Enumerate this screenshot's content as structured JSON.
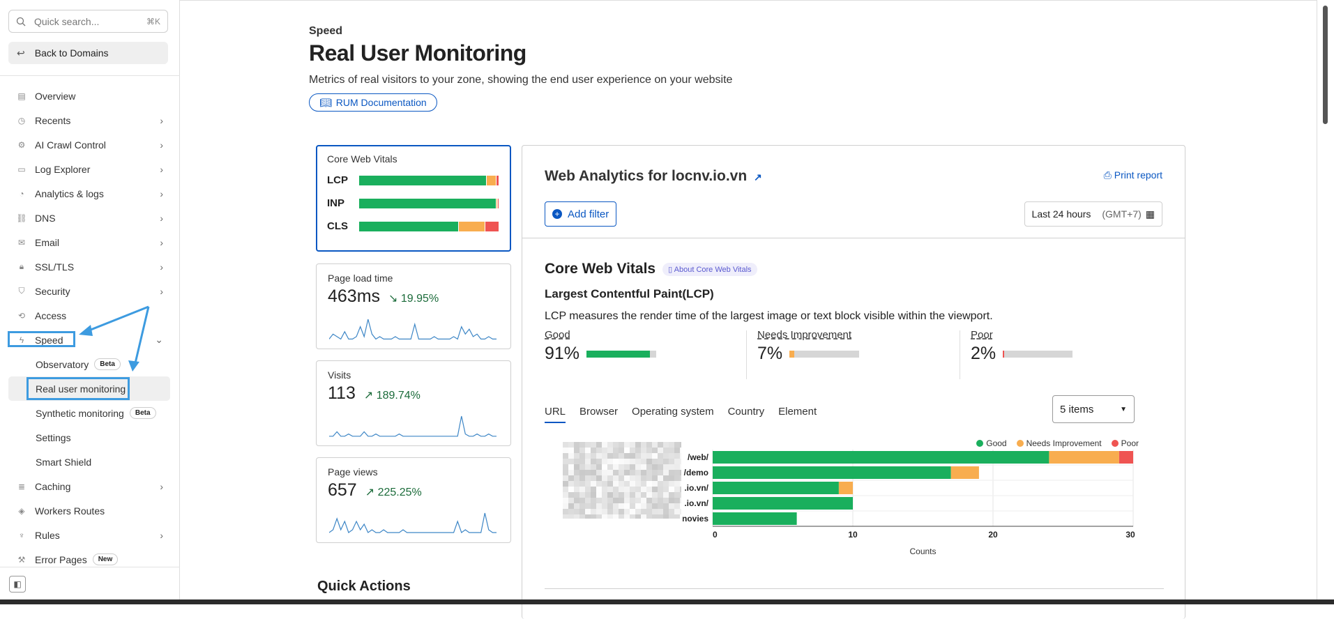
{
  "sidebar": {
    "search_placeholder": "Quick search...",
    "search_shortcut": "⌘K",
    "back_label": "Back to Domains",
    "items": [
      {
        "label": "Overview",
        "icon": "document-icon",
        "chevron": false
      },
      {
        "label": "Recents",
        "icon": "clock-icon",
        "chevron": true
      },
      {
        "label": "AI Crawl Control",
        "icon": "robot-icon",
        "chevron": true
      },
      {
        "label": "Log Explorer",
        "icon": "log-icon",
        "chevron": true
      },
      {
        "label": "Analytics & logs",
        "icon": "pie-icon",
        "chevron": true
      },
      {
        "label": "DNS",
        "icon": "network-icon",
        "chevron": true
      },
      {
        "label": "Email",
        "icon": "mail-icon",
        "chevron": true
      },
      {
        "label": "SSL/TLS",
        "icon": "lock-icon",
        "chevron": true
      },
      {
        "label": "Security",
        "icon": "shield-icon",
        "chevron": true
      },
      {
        "label": "Access",
        "icon": "access-icon",
        "chevron": false
      },
      {
        "label": "Speed",
        "icon": "bolt-icon",
        "chevron": true
      }
    ],
    "speed_sub": [
      {
        "label": "Observatory",
        "badge": "Beta"
      },
      {
        "label": "Real user monitoring",
        "badge": ""
      },
      {
        "label": "Synthetic monitoring",
        "badge": "Beta"
      },
      {
        "label": "Settings",
        "badge": ""
      },
      {
        "label": "Smart Shield",
        "badge": ""
      }
    ],
    "items_after": [
      {
        "label": "Caching",
        "icon": "stack-icon",
        "chevron": true
      },
      {
        "label": "Workers Routes",
        "icon": "workers-icon",
        "chevron": false
      },
      {
        "label": "Rules",
        "icon": "rules-icon",
        "chevron": true
      },
      {
        "label": "Error Pages",
        "icon": "wrench-icon",
        "chevron": false,
        "badge": "New"
      }
    ]
  },
  "header": {
    "eyebrow": "Speed",
    "title": "Real User Monitoring",
    "description": "Metrics of real visitors to your zone, showing the end user experience on your website",
    "doc_button": "RUM Documentation"
  },
  "cwv_card": {
    "title": "Core Web Vitals",
    "rows": [
      {
        "label": "LCP",
        "good": 91,
        "ni": 7,
        "poor": 2
      },
      {
        "label": "INP",
        "good": 98,
        "ni": 1,
        "poor": 1
      },
      {
        "label": "CLS",
        "good": 71,
        "ni": 19,
        "poor": 10
      }
    ]
  },
  "metrics": [
    {
      "title": "Page load time",
      "value": "463ms",
      "change": "19.95%",
      "direction": "down",
      "spark": [
        1,
        3,
        2,
        1,
        4,
        1,
        1,
        2,
        6,
        2,
        9,
        3,
        1,
        2,
        1,
        1,
        1,
        2,
        1,
        1,
        1,
        1,
        7,
        1,
        1,
        1,
        1,
        2,
        1,
        1,
        1,
        1,
        2,
        1,
        6,
        3,
        5,
        2,
        3,
        1,
        1,
        2,
        1,
        1
      ]
    },
    {
      "title": "Visits",
      "value": "113",
      "change": "189.74%",
      "direction": "up",
      "spark": [
        1,
        1,
        3,
        1,
        1,
        2,
        1,
        1,
        1,
        3,
        1,
        1,
        2,
        1,
        1,
        1,
        1,
        1,
        2,
        1,
        1,
        1,
        1,
        1,
        1,
        1,
        1,
        1,
        1,
        1,
        1,
        1,
        1,
        1,
        10,
        2,
        1,
        1,
        2,
        1,
        1,
        2,
        1,
        1
      ]
    },
    {
      "title": "Page views",
      "value": "657",
      "change": "225.25%",
      "direction": "up",
      "spark": [
        1,
        2,
        6,
        2,
        5,
        1,
        2,
        5,
        2,
        4,
        1,
        2,
        1,
        1,
        2,
        1,
        1,
        1,
        1,
        2,
        1,
        1,
        1,
        1,
        1,
        1,
        1,
        1,
        1,
        1,
        1,
        1,
        1,
        5,
        1,
        2,
        1,
        1,
        1,
        1,
        8,
        2,
        1,
        1
      ]
    }
  ],
  "quick_actions": "Quick Actions",
  "panel": {
    "title": "Web Analytics for locnv.io.vn",
    "print_label": "Print report",
    "add_filter": "Add filter",
    "date_range": "Last 24 hours",
    "timezone": "(GMT+7)",
    "section_title": "Core Web Vitals",
    "about_label": "About Core Web Vitals",
    "lcp_title": "Largest Contentful Paint(LCP)",
    "lcp_desc": "LCP measures the render time of the largest image or text block visible within the viewport.",
    "stats": [
      {
        "label": "Good",
        "value": "91%",
        "pct": 91,
        "color": "#1aaf5d"
      },
      {
        "label": "Needs Improvement",
        "value": "7%",
        "pct": 7,
        "color": "#f8ad4f"
      },
      {
        "label": "Poor",
        "value": "2%",
        "pct": 2,
        "color": "#ef5452"
      }
    ],
    "tabs": [
      "URL",
      "Browser",
      "Operating system",
      "Country",
      "Element"
    ],
    "active_tab": "URL",
    "items_select": "5 items"
  },
  "chart_data": {
    "type": "bar",
    "orientation": "horizontal",
    "stacked": true,
    "categories": [
      "/web/",
      "/demo",
      ".io.vn/",
      ".io.vn/",
      "novies"
    ],
    "series": [
      {
        "name": "Good",
        "values": [
          24,
          17,
          9,
          10,
          6
        ],
        "color": "#1aaf5d"
      },
      {
        "name": "Needs Improvement",
        "values": [
          5,
          2,
          1,
          0,
          0
        ],
        "color": "#f8ad4f"
      },
      {
        "name": "Poor",
        "values": [
          1,
          0,
          0,
          0,
          0
        ],
        "color": "#ef5452"
      }
    ],
    "xlabel": "Counts",
    "xlim": [
      0,
      30
    ],
    "xticks": [
      "0",
      "10",
      "20",
      "30"
    ],
    "legend": "top-right"
  }
}
